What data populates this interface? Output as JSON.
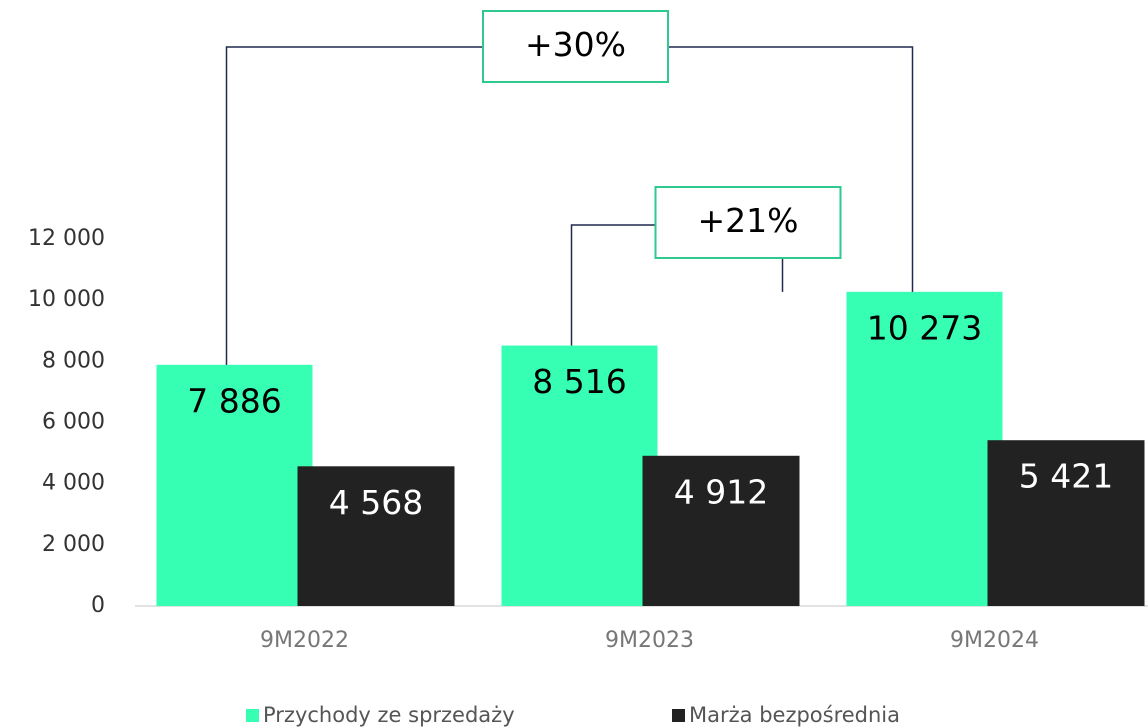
{
  "chart_data": {
    "type": "bar",
    "categories": [
      "9M2022",
      "9M2023",
      "9M2024"
    ],
    "series": [
      {
        "name": "Przychody ze sprzedaży",
        "color": "#36ffb4",
        "values": [
          7886,
          8516,
          10273
        ],
        "value_labels": [
          "7 886",
          "8 516",
          "10 273"
        ]
      },
      {
        "name": "Marża bezpośrednia",
        "color": "#222222",
        "values": [
          4568,
          4912,
          5421
        ],
        "value_labels": [
          "4 568",
          "4 912",
          "5 421"
        ]
      }
    ],
    "ylim": [
      0,
      12000
    ],
    "yticks": [
      0,
      {
        "value": 2000,
        "label": "2 000"
      },
      {
        "value": 4000,
        "label": "4 000"
      },
      {
        "value": 6000,
        "label": "6 000"
      },
      {
        "value": 8000,
        "label": "8 000"
      },
      {
        "value": 10000,
        "label": "10 000"
      },
      {
        "value": 12000,
        "label": "12 000"
      }
    ],
    "annotations": [
      {
        "text": "+30%",
        "from": 0,
        "to": 2
      },
      {
        "text": "+21%",
        "from": 1,
        "to": 2
      }
    ],
    "legend": "bottom"
  }
}
